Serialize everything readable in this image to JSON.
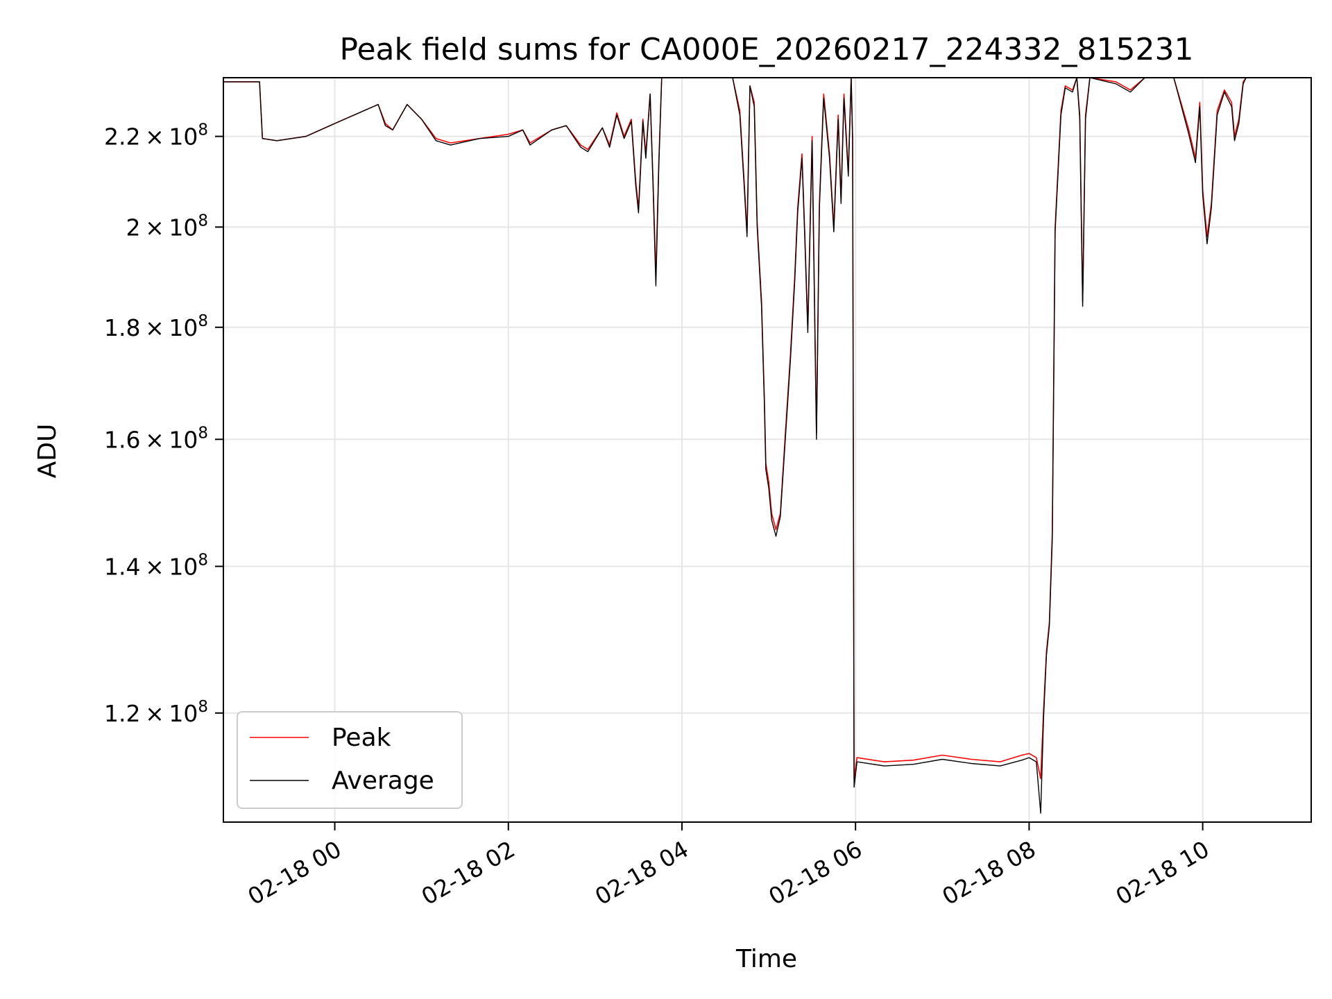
{
  "chart_data": {
    "type": "line",
    "title": "Peak field sums for CA000E_20260217_224332_815231",
    "xlabel": "Time",
    "ylabel": "ADU",
    "x_type": "datetime",
    "xlim": [
      "2026-02-17T22:43",
      "2026-02-18T11:15"
    ],
    "ylim": [
      107000000,
      234000000
    ],
    "yscale": "log",
    "grid": true,
    "legend_position": "lower-left",
    "x_ticks": [
      {
        "value": "2026-02-18T00:00",
        "label": "02-18 00"
      },
      {
        "value": "2026-02-18T02:00",
        "label": "02-18 02"
      },
      {
        "value": "2026-02-18T04:00",
        "label": "02-18 04"
      },
      {
        "value": "2026-02-18T06:00",
        "label": "02-18 06"
      },
      {
        "value": "2026-02-18T08:00",
        "label": "02-18 08"
      },
      {
        "value": "2026-02-18T10:00",
        "label": "02-18 10"
      }
    ],
    "y_ticks": [
      {
        "value": 120000000,
        "mantissa": "1.2",
        "exp": "8"
      },
      {
        "value": 140000000,
        "mantissa": "1.4",
        "exp": "8"
      },
      {
        "value": 160000000,
        "mantissa": "1.6",
        "exp": "8"
      },
      {
        "value": 180000000,
        "mantissa": "1.8",
        "exp": "8"
      },
      {
        "value": 200000000,
        "mantissa": "2",
        "exp": "8"
      },
      {
        "value": 220000000,
        "mantissa": "2.2",
        "exp": "8"
      }
    ],
    "series": [
      {
        "name": "Peak",
        "color": "#ff0000",
        "points": [
          [
            "2026-02-17T22:43",
            233000000
          ],
          [
            "2026-02-17T23:08",
            233000000
          ],
          [
            "2026-02-17T23:10",
            219500000
          ],
          [
            "2026-02-17T23:20",
            219000000
          ],
          [
            "2026-02-17T23:40",
            220000000
          ],
          [
            "2026-02-18T00:00",
            223000000
          ],
          [
            "2026-02-18T00:20",
            226000000
          ],
          [
            "2026-02-18T00:30",
            227500000
          ],
          [
            "2026-02-18T00:35",
            223000000
          ],
          [
            "2026-02-18T00:40",
            221500000
          ],
          [
            "2026-02-18T00:50",
            227500000
          ],
          [
            "2026-02-18T01:00",
            224000000
          ],
          [
            "2026-02-18T01:10",
            219500000
          ],
          [
            "2026-02-18T01:20",
            218500000
          ],
          [
            "2026-02-18T01:40",
            219500000
          ],
          [
            "2026-02-18T02:00",
            220500000
          ],
          [
            "2026-02-18T02:10",
            221500000
          ],
          [
            "2026-02-18T02:15",
            218500000
          ],
          [
            "2026-02-18T02:30",
            221500000
          ],
          [
            "2026-02-18T02:40",
            222500000
          ],
          [
            "2026-02-18T02:50",
            218000000
          ],
          [
            "2026-02-18T02:55",
            217000000
          ],
          [
            "2026-02-18T03:05",
            222000000
          ],
          [
            "2026-02-18T03:10",
            218000000
          ],
          [
            "2026-02-18T03:15",
            225500000
          ],
          [
            "2026-02-18T03:20",
            220000000
          ],
          [
            "2026-02-18T03:25",
            224000000
          ],
          [
            "2026-02-18T03:28",
            210000000
          ],
          [
            "2026-02-18T03:30",
            204000000
          ],
          [
            "2026-02-18T03:33",
            224000000
          ],
          [
            "2026-02-18T03:35",
            216000000
          ],
          [
            "2026-02-18T03:38",
            230000000
          ],
          [
            "2026-02-18T03:40",
            210000000
          ],
          [
            "2026-02-18T03:42",
            190000000
          ],
          [
            "2026-02-18T03:44",
            214000000
          ],
          [
            "2026-02-18T03:46",
            234000000
          ],
          [
            "2026-02-18T03:55",
            234000000
          ],
          [
            "2026-02-18T04:05",
            234000000
          ],
          [
            "2026-02-18T04:20",
            234000000
          ],
          [
            "2026-02-18T04:35",
            234000000
          ],
          [
            "2026-02-18T04:40",
            226000000
          ],
          [
            "2026-02-18T04:43",
            210000000
          ],
          [
            "2026-02-18T04:45",
            199000000
          ],
          [
            "2026-02-18T04:47",
            232000000
          ],
          [
            "2026-02-18T04:50",
            228000000
          ],
          [
            "2026-02-18T04:52",
            201000000
          ],
          [
            "2026-02-18T04:55",
            185000000
          ],
          [
            "2026-02-18T04:57",
            167000000
          ],
          [
            "2026-02-18T04:58",
            156000000
          ],
          [
            "2026-02-18T05:00",
            153000000
          ],
          [
            "2026-02-18T05:02",
            148000000
          ],
          [
            "2026-02-18T05:05",
            145500000
          ],
          [
            "2026-02-18T05:08",
            148000000
          ],
          [
            "2026-02-18T05:12",
            163000000
          ],
          [
            "2026-02-18T05:15",
            175000000
          ],
          [
            "2026-02-18T05:18",
            190000000
          ],
          [
            "2026-02-18T05:20",
            204000000
          ],
          [
            "2026-02-18T05:23",
            216000000
          ],
          [
            "2026-02-18T05:25",
            198000000
          ],
          [
            "2026-02-18T05:27",
            180000000
          ],
          [
            "2026-02-18T05:30",
            220000000
          ],
          [
            "2026-02-18T05:33",
            161000000
          ],
          [
            "2026-02-18T05:35",
            205000000
          ],
          [
            "2026-02-18T05:38",
            230000000
          ],
          [
            "2026-02-18T05:42",
            216000000
          ],
          [
            "2026-02-18T05:45",
            200000000
          ],
          [
            "2026-02-18T05:48",
            225000000
          ],
          [
            "2026-02-18T05:50",
            206000000
          ],
          [
            "2026-02-18T05:52",
            230000000
          ],
          [
            "2026-02-18T05:55",
            212000000
          ],
          [
            "2026-02-18T05:57",
            234000000
          ],
          [
            "2026-02-18T05:58",
            220000000
          ],
          [
            "2026-02-18T05:59",
            112000000
          ],
          [
            "2026-02-18T06:01",
            114500000
          ],
          [
            "2026-02-18T06:20",
            114000000
          ],
          [
            "2026-02-18T06:40",
            114200000
          ],
          [
            "2026-02-18T07:00",
            114800000
          ],
          [
            "2026-02-18T07:20",
            114300000
          ],
          [
            "2026-02-18T07:40",
            114000000
          ],
          [
            "2026-02-18T07:55",
            114800000
          ],
          [
            "2026-02-18T08:00",
            115000000
          ],
          [
            "2026-02-18T08:05",
            114500000
          ],
          [
            "2026-02-18T08:08",
            112000000
          ],
          [
            "2026-02-18T08:10",
            120500000
          ],
          [
            "2026-02-18T08:12",
            128000000
          ],
          [
            "2026-02-18T08:14",
            132000000
          ],
          [
            "2026-02-18T08:16",
            145000000
          ],
          [
            "2026-02-18T08:18",
            200000000
          ],
          [
            "2026-02-18T08:22",
            226000000
          ],
          [
            "2026-02-18T08:25",
            232000000
          ],
          [
            "2026-02-18T08:30",
            231000000
          ],
          [
            "2026-02-18T08:33",
            234000000
          ],
          [
            "2026-02-18T08:35",
            225000000
          ],
          [
            "2026-02-18T08:37",
            185000000
          ],
          [
            "2026-02-18T08:39",
            225000000
          ],
          [
            "2026-02-18T08:42",
            234000000
          ],
          [
            "2026-02-18T09:00",
            233000000
          ],
          [
            "2026-02-18T09:10",
            231000000
          ],
          [
            "2026-02-18T09:20",
            234000000
          ],
          [
            "2026-02-18T09:40",
            234000000
          ],
          [
            "2026-02-18T09:50",
            222000000
          ],
          [
            "2026-02-18T09:55",
            215000000
          ],
          [
            "2026-02-18T09:58",
            228000000
          ],
          [
            "2026-02-18T10:00",
            208000000
          ],
          [
            "2026-02-18T10:03",
            198000000
          ],
          [
            "2026-02-18T10:06",
            205000000
          ],
          [
            "2026-02-18T10:10",
            226000000
          ],
          [
            "2026-02-18T10:15",
            231000000
          ],
          [
            "2026-02-18T10:20",
            228000000
          ],
          [
            "2026-02-18T10:22",
            220000000
          ],
          [
            "2026-02-18T10:25",
            224000000
          ],
          [
            "2026-02-18T10:28",
            233000000
          ],
          [
            "2026-02-18T10:30",
            234000000
          ]
        ]
      },
      {
        "name": "Average",
        "color": "#000000",
        "points": [
          [
            "2026-02-17T22:43",
            233000000
          ],
          [
            "2026-02-17T23:08",
            233000000
          ],
          [
            "2026-02-17T23:10",
            219500000
          ],
          [
            "2026-02-17T23:20",
            219000000
          ],
          [
            "2026-02-17T23:40",
            220000000
          ],
          [
            "2026-02-18T00:00",
            223000000
          ],
          [
            "2026-02-18T00:20",
            226000000
          ],
          [
            "2026-02-18T00:30",
            227500000
          ],
          [
            "2026-02-18T00:35",
            222500000
          ],
          [
            "2026-02-18T00:40",
            221500000
          ],
          [
            "2026-02-18T00:50",
            227500000
          ],
          [
            "2026-02-18T01:00",
            224000000
          ],
          [
            "2026-02-18T01:10",
            219000000
          ],
          [
            "2026-02-18T01:20",
            218000000
          ],
          [
            "2026-02-18T01:40",
            219500000
          ],
          [
            "2026-02-18T02:00",
            220000000
          ],
          [
            "2026-02-18T02:10",
            221500000
          ],
          [
            "2026-02-18T02:15",
            218000000
          ],
          [
            "2026-02-18T02:30",
            221500000
          ],
          [
            "2026-02-18T02:40",
            222500000
          ],
          [
            "2026-02-18T02:50",
            217500000
          ],
          [
            "2026-02-18T02:55",
            216500000
          ],
          [
            "2026-02-18T03:05",
            222000000
          ],
          [
            "2026-02-18T03:10",
            217500000
          ],
          [
            "2026-02-18T03:15",
            225000000
          ],
          [
            "2026-02-18T03:20",
            219500000
          ],
          [
            "2026-02-18T03:25",
            223500000
          ],
          [
            "2026-02-18T03:28",
            209000000
          ],
          [
            "2026-02-18T03:30",
            203000000
          ],
          [
            "2026-02-18T03:33",
            223500000
          ],
          [
            "2026-02-18T03:35",
            215000000
          ],
          [
            "2026-02-18T03:38",
            230000000
          ],
          [
            "2026-02-18T03:40",
            209000000
          ],
          [
            "2026-02-18T03:42",
            188000000
          ],
          [
            "2026-02-18T03:44",
            213000000
          ],
          [
            "2026-02-18T03:46",
            234000000
          ],
          [
            "2026-02-18T03:55",
            234000000
          ],
          [
            "2026-02-18T04:05",
            234000000
          ],
          [
            "2026-02-18T04:20",
            234000000
          ],
          [
            "2026-02-18T04:35",
            234000000
          ],
          [
            "2026-02-18T04:40",
            225000000
          ],
          [
            "2026-02-18T04:43",
            209000000
          ],
          [
            "2026-02-18T04:45",
            198000000
          ],
          [
            "2026-02-18T04:47",
            232000000
          ],
          [
            "2026-02-18T04:50",
            227000000
          ],
          [
            "2026-02-18T04:52",
            200000000
          ],
          [
            "2026-02-18T04:55",
            184000000
          ],
          [
            "2026-02-18T04:57",
            166000000
          ],
          [
            "2026-02-18T04:58",
            155000000
          ],
          [
            "2026-02-18T05:00",
            152000000
          ],
          [
            "2026-02-18T05:02",
            147000000
          ],
          [
            "2026-02-18T05:05",
            144500000
          ],
          [
            "2026-02-18T05:08",
            147500000
          ],
          [
            "2026-02-18T05:12",
            162000000
          ],
          [
            "2026-02-18T05:15",
            174000000
          ],
          [
            "2026-02-18T05:18",
            189000000
          ],
          [
            "2026-02-18T05:20",
            203000000
          ],
          [
            "2026-02-18T05:23",
            215000000
          ],
          [
            "2026-02-18T05:25",
            197000000
          ],
          [
            "2026-02-18T05:27",
            179000000
          ],
          [
            "2026-02-18T05:30",
            219000000
          ],
          [
            "2026-02-18T05:33",
            160000000
          ],
          [
            "2026-02-18T05:35",
            204000000
          ],
          [
            "2026-02-18T05:38",
            229000000
          ],
          [
            "2026-02-18T05:42",
            215000000
          ],
          [
            "2026-02-18T05:45",
            199000000
          ],
          [
            "2026-02-18T05:48",
            224000000
          ],
          [
            "2026-02-18T05:50",
            205000000
          ],
          [
            "2026-02-18T05:52",
            229000000
          ],
          [
            "2026-02-18T05:55",
            211000000
          ],
          [
            "2026-02-18T05:57",
            234000000
          ],
          [
            "2026-02-18T05:58",
            219000000
          ],
          [
            "2026-02-18T05:59",
            111000000
          ],
          [
            "2026-02-18T06:01",
            114000000
          ],
          [
            "2026-02-18T06:20",
            113500000
          ],
          [
            "2026-02-18T06:40",
            113700000
          ],
          [
            "2026-02-18T07:00",
            114300000
          ],
          [
            "2026-02-18T07:20",
            113800000
          ],
          [
            "2026-02-18T07:40",
            113500000
          ],
          [
            "2026-02-18T07:55",
            114200000
          ],
          [
            "2026-02-18T08:00",
            114500000
          ],
          [
            "2026-02-18T08:05",
            114000000
          ],
          [
            "2026-02-18T08:08",
            108000000
          ],
          [
            "2026-02-18T08:10",
            119500000
          ],
          [
            "2026-02-18T08:12",
            127500000
          ],
          [
            "2026-02-18T08:14",
            131500000
          ],
          [
            "2026-02-18T08:16",
            144000000
          ],
          [
            "2026-02-18T08:18",
            199000000
          ],
          [
            "2026-02-18T08:22",
            225000000
          ],
          [
            "2026-02-18T08:25",
            231500000
          ],
          [
            "2026-02-18T08:30",
            230500000
          ],
          [
            "2026-02-18T08:33",
            234000000
          ],
          [
            "2026-02-18T08:35",
            224000000
          ],
          [
            "2026-02-18T08:37",
            184000000
          ],
          [
            "2026-02-18T08:39",
            224000000
          ],
          [
            "2026-02-18T08:42",
            234000000
          ],
          [
            "2026-02-18T09:00",
            232500000
          ],
          [
            "2026-02-18T09:10",
            230500000
          ],
          [
            "2026-02-18T09:20",
            234000000
          ],
          [
            "2026-02-18T09:40",
            234000000
          ],
          [
            "2026-02-18T09:50",
            221000000
          ],
          [
            "2026-02-18T09:55",
            214000000
          ],
          [
            "2026-02-18T09:58",
            227000000
          ],
          [
            "2026-02-18T10:00",
            207000000
          ],
          [
            "2026-02-18T10:03",
            196500000
          ],
          [
            "2026-02-18T10:06",
            204000000
          ],
          [
            "2026-02-18T10:10",
            225000000
          ],
          [
            "2026-02-18T10:15",
            230500000
          ],
          [
            "2026-02-18T10:20",
            227000000
          ],
          [
            "2026-02-18T10:22",
            219000000
          ],
          [
            "2026-02-18T10:25",
            223000000
          ],
          [
            "2026-02-18T10:28",
            232500000
          ],
          [
            "2026-02-18T10:30",
            234000000
          ]
        ]
      }
    ]
  }
}
